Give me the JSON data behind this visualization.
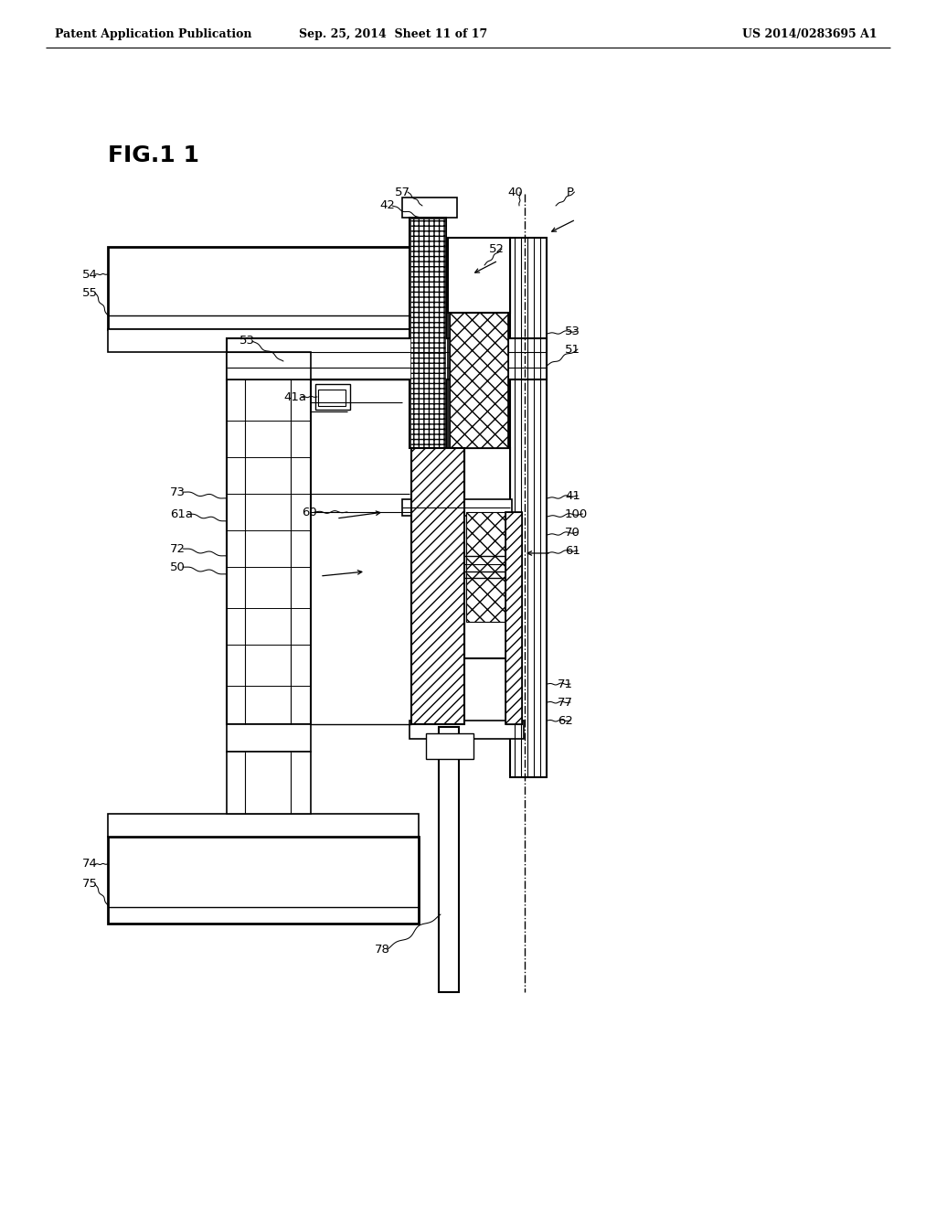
{
  "header_left": "Patent Application Publication",
  "header_mid": "Sep. 25, 2014  Sheet 11 of 17",
  "header_right": "US 2014/0283695 A1",
  "fig_label": "FIG.1 1",
  "bg_color": "#ffffff"
}
